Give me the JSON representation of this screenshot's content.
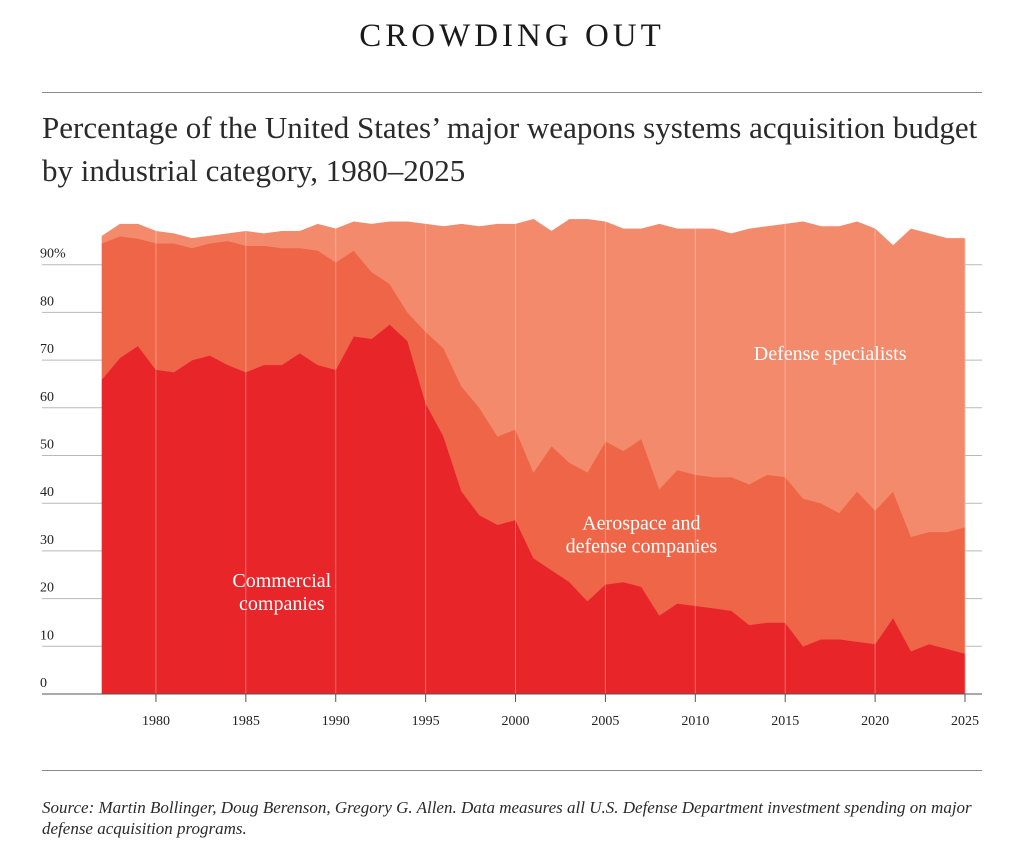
{
  "header": {
    "headline": "CROWDING OUT",
    "subtitle": "Percentage of the United States’ major weapons systems acquisition budget by industrial category, 1980–2025"
  },
  "footer": {
    "source": "Source: Martin Bollinger, Doug Berenson, Gregory G. Allen. Data measures all U.S. Defense Department investment spending on major defense acquisition programs."
  },
  "chart_data": {
    "type": "area",
    "stacked": true,
    "x": [
      1977,
      1978,
      1979,
      1980,
      1981,
      1982,
      1983,
      1984,
      1985,
      1986,
      1987,
      1988,
      1989,
      1990,
      1991,
      1992,
      1993,
      1994,
      1995,
      1996,
      1997,
      1998,
      1999,
      2000,
      2001,
      2002,
      2003,
      2004,
      2005,
      2006,
      2007,
      2008,
      2009,
      2010,
      2011,
      2012,
      2013,
      2014,
      2015,
      2016,
      2017,
      2018,
      2019,
      2020,
      2021,
      2022,
      2023,
      2024,
      2025
    ],
    "xlim": [
      1977,
      2025
    ],
    "ylim": [
      0,
      100
    ],
    "grid": true,
    "x_ticks": [
      1980,
      1985,
      1990,
      1995,
      2000,
      2005,
      2010,
      2015,
      2020,
      2025
    ],
    "x_tick_labels": [
      "1980",
      "1985",
      "1990",
      "1995",
      "2000",
      "2005",
      "2010",
      "2015",
      "2020",
      "2025"
    ],
    "y_ticks": [
      0,
      10,
      20,
      30,
      40,
      50,
      60,
      70,
      80,
      90
    ],
    "y_tick_labels": [
      "0",
      "10",
      "20",
      "30",
      "40",
      "50",
      "60",
      "70",
      "80",
      "90%"
    ],
    "series": [
      {
        "name": "Commercial companies",
        "label_lines": [
          "Commercial",
          "companies"
        ],
        "label_at": [
          1987,
          21.5
        ],
        "color": "#e8262a",
        "values": [
          66,
          70.5,
          73,
          68,
          67.5,
          70,
          71,
          69,
          67.5,
          69,
          69,
          71.5,
          69,
          68,
          75,
          74.5,
          77.5,
          74,
          61,
          54,
          42.5,
          37.5,
          35.5,
          36.5,
          28.5,
          26,
          23.5,
          19.5,
          23,
          23.5,
          22.5,
          16.5,
          19,
          18.5,
          18,
          17.5,
          14.5,
          15,
          15,
          10,
          11.5,
          11.5,
          11,
          10.5,
          16,
          9,
          10.5,
          9.5,
          8.5
        ]
      },
      {
        "name": "Aerospace and defense companies",
        "label_lines": [
          "Aerospace and",
          "defense companies"
        ],
        "label_at": [
          2007,
          33.5
        ],
        "color": "#ef6548",
        "values": [
          28.5,
          25.5,
          22.5,
          26.5,
          27,
          23.5,
          23.5,
          26,
          26.5,
          25,
          24.5,
          22,
          24,
          22.5,
          18,
          14,
          8.5,
          6,
          15,
          18.5,
          22,
          22.5,
          18.5,
          19,
          18,
          26,
          25,
          27,
          30,
          27.5,
          31,
          26.5,
          28,
          27.5,
          27.5,
          28,
          29.5,
          31,
          30.5,
          31,
          28.5,
          26.5,
          31.5,
          28,
          26.5,
          24,
          23.5,
          24.5,
          26.5
        ]
      },
      {
        "name": "Defense specialists",
        "label_lines": [
          "Defense specialists"
        ],
        "label_at": [
          2017.5,
          71.5
        ],
        "color": "#f48a6c",
        "values": [
          1.5,
          2.5,
          3,
          2.5,
          2,
          2,
          1.5,
          1.5,
          3,
          2.5,
          3.5,
          3.5,
          5.5,
          7,
          6,
          10,
          13,
          19,
          22.5,
          25.5,
          34,
          38,
          44.5,
          43,
          53,
          45,
          51,
          53,
          46,
          46.5,
          44,
          55.5,
          50.5,
          51.5,
          52,
          51,
          53.5,
          52,
          53,
          58,
          58,
          60,
          56.5,
          59,
          51.5,
          64.5,
          62.5,
          61.5,
          60.5
        ]
      }
    ]
  }
}
